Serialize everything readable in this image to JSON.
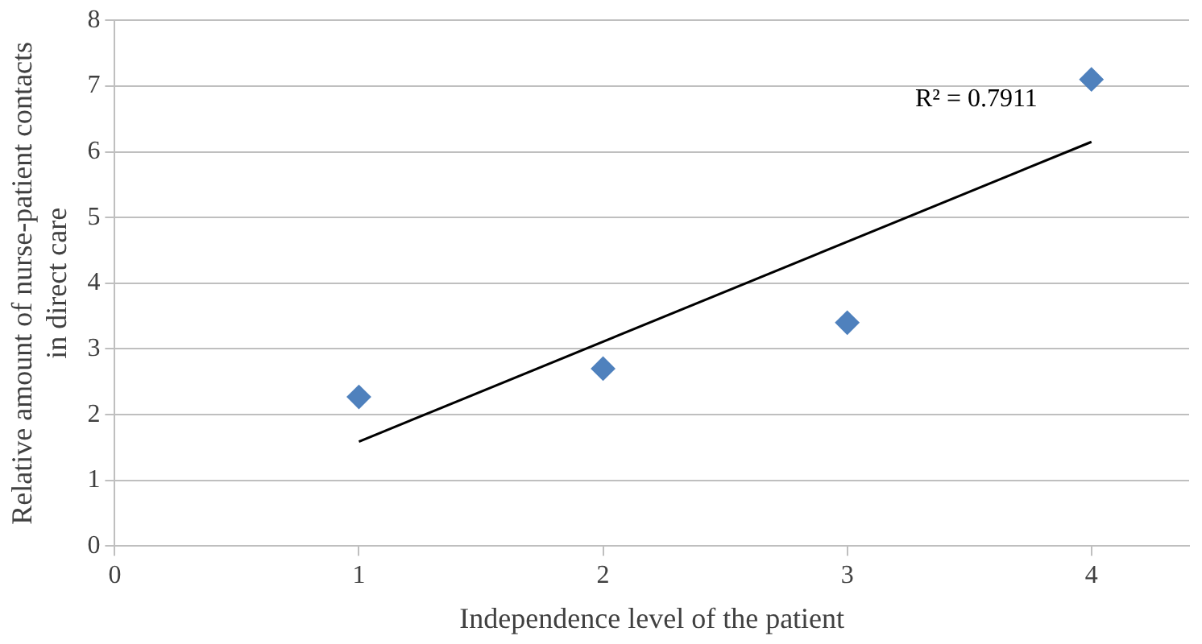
{
  "chart_data": {
    "type": "scatter",
    "xlabel": "Independence level of the patient",
    "ylabel": "Relative amount of nurse-patient contacts in direct care",
    "series": [
      {
        "color": "#4f81bd",
        "x": [
          1,
          2,
          3,
          4
        ],
        "values": [
          2.27,
          2.7,
          3.4,
          7.1
        ],
        "marker": "diamond"
      },
      {
        "type": "line",
        "color": "#000000",
        "x": [
          1,
          4
        ],
        "values": [
          1.59,
          6.15
        ],
        "marker": "none"
      }
    ],
    "annotations": [
      "R² = 0.7911"
    ],
    "xlim": [
      0,
      4.4
    ],
    "xticks": [
      0,
      1,
      2,
      3,
      4
    ],
    "ylim": [
      0,
      8
    ],
    "yticks": [
      0,
      1,
      2,
      3,
      4,
      5,
      6,
      7,
      8
    ],
    "grid": "y",
    "legend": false
  }
}
